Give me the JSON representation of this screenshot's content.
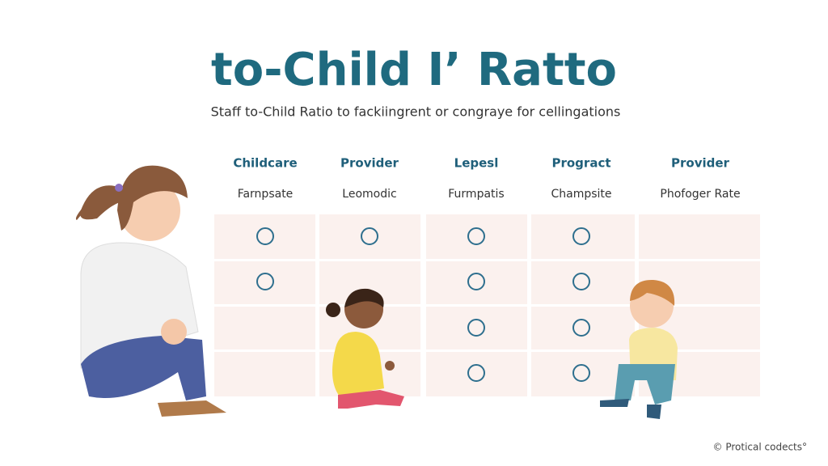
{
  "header": {
    "title": "to-Child I’ Ratto",
    "subtitle": "Staff to-Child Ratio to fackiingrent or congraye for cellingations"
  },
  "table": {
    "columns": [
      {
        "heading": "Childcare",
        "subheading": "Farnpsate"
      },
      {
        "heading": "Provider",
        "subheading": "Leomodic"
      },
      {
        "heading": "Lepesl",
        "subheading": "Furmpatis"
      },
      {
        "heading": "Progract",
        "subheading": "Champsite"
      },
      {
        "heading": "Provider",
        "subheading": "Phofoger Rate"
      }
    ]
  },
  "footer": {
    "credit": "© Protical codects°"
  }
}
